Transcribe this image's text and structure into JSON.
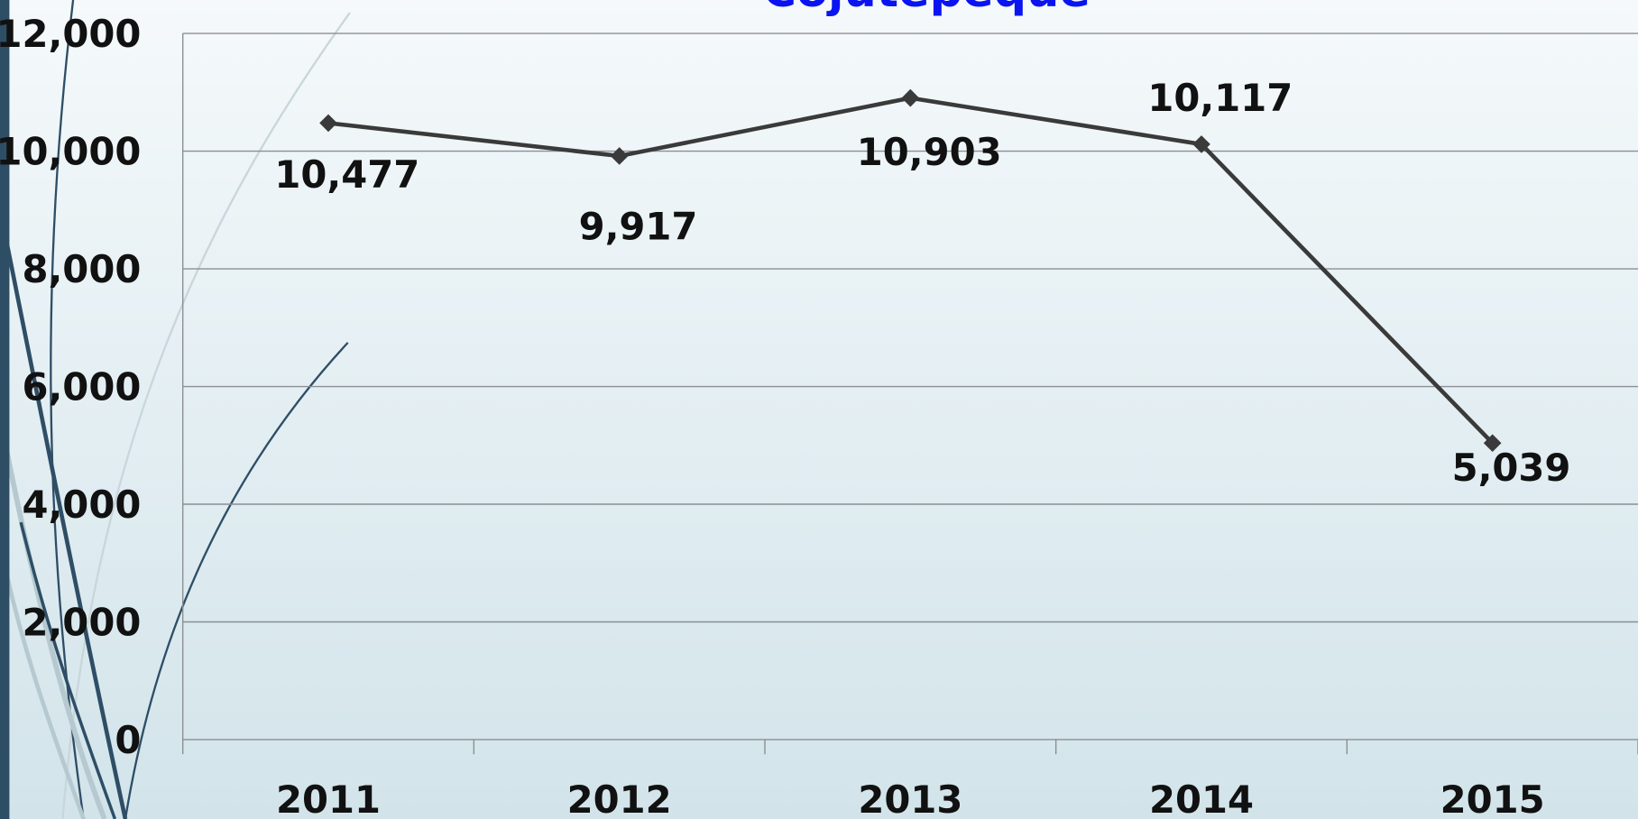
{
  "chart_data": {
    "type": "line",
    "title": "Cojutepeque",
    "categories": [
      "2011",
      "2012",
      "2013",
      "2014",
      "2015"
    ],
    "series": [
      {
        "name": "Cojutepeque",
        "color": "#3a3a3a",
        "values": [
          10477,
          9917,
          10903,
          10117,
          5039
        ],
        "value_labels": [
          "10,477",
          "9,917",
          "10,903",
          "10,117",
          "5,039"
        ]
      }
    ],
    "ylim": [
      0,
      12000
    ],
    "yticks": [
      0,
      {
        "value": 2000,
        "label": "2,000"
      },
      {
        "value": 4000,
        "label": "4,000"
      },
      {
        "value": 6000,
        "label": "6,000"
      },
      {
        "value": 8000,
        "label": "8,000"
      },
      {
        "value": 10000,
        "label": "10,000"
      },
      {
        "value": 12000,
        "label": "12,000"
      }
    ],
    "grid": true
  }
}
